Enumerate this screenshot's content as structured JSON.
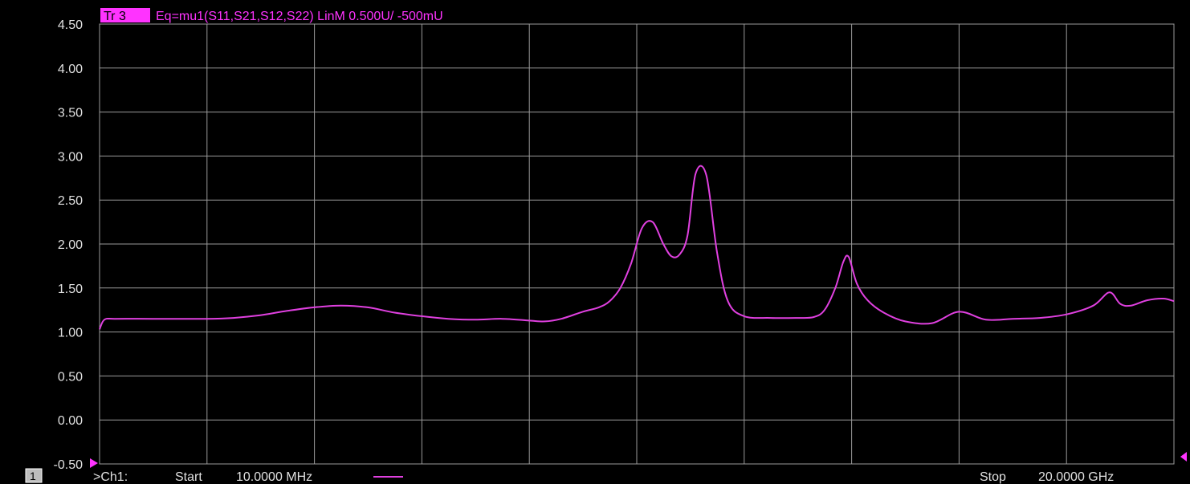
{
  "header": {
    "trace_badge": "Tr 3",
    "trace_description": "Eq=mu1(S11,S21,S12,S22) LinM 0.500U/  -500mU"
  },
  "footer": {
    "channel_number": "1",
    "channel_label": ">Ch1:",
    "start_label": "Start",
    "start_value": "10.0000 MHz",
    "stop_label": "Stop",
    "stop_value": "20.0000 GHz"
  },
  "colors": {
    "background": "#000000",
    "grid": "#9a9a9a",
    "trace": "#e040e0",
    "badge_bg": "#ff33ff",
    "text": "#e0e0e0"
  },
  "chart_data": {
    "type": "line",
    "x_unit": "GHz",
    "xlim": [
      0.01,
      20.0
    ],
    "ylim": [
      -0.5,
      4.5
    ],
    "y_ticks": [
      "4.50",
      "4.00",
      "3.50",
      "3.00",
      "2.50",
      "2.00",
      "1.50",
      "1.00",
      "0.50",
      "0.00",
      "-0.50"
    ],
    "grid": true,
    "series": [
      {
        "x": [
          0.01,
          0.1,
          0.3,
          1.0,
          2.0,
          2.5,
          3.0,
          3.5,
          4.0,
          4.5,
          5.0,
          5.5,
          6.0,
          6.5,
          7.0,
          7.5,
          8.0,
          8.3,
          8.6,
          9.0,
          9.3,
          9.5,
          9.7,
          9.9,
          10.1,
          10.3,
          10.5,
          10.65,
          10.8,
          10.95,
          11.1,
          11.3,
          11.5,
          11.7,
          12.0,
          12.5,
          13.0,
          13.3,
          13.5,
          13.7,
          13.85,
          13.95,
          14.1,
          14.3,
          14.6,
          15.0,
          15.5,
          16.0,
          16.5,
          17.0,
          17.5,
          18.0,
          18.5,
          18.8,
          19.0,
          19.2,
          19.5,
          19.8,
          20.0
        ],
        "y": [
          1.03,
          1.14,
          1.15,
          1.15,
          1.15,
          1.16,
          1.19,
          1.24,
          1.28,
          1.3,
          1.28,
          1.22,
          1.18,
          1.15,
          1.14,
          1.15,
          1.13,
          1.12,
          1.15,
          1.23,
          1.28,
          1.35,
          1.5,
          1.78,
          2.18,
          2.25,
          2.0,
          1.86,
          1.88,
          2.1,
          2.8,
          2.78,
          1.9,
          1.35,
          1.18,
          1.16,
          1.16,
          1.17,
          1.25,
          1.5,
          1.8,
          1.85,
          1.55,
          1.36,
          1.22,
          1.12,
          1.1,
          1.23,
          1.14,
          1.15,
          1.16,
          1.2,
          1.3,
          1.45,
          1.32,
          1.3,
          1.36,
          1.38,
          1.35
        ]
      }
    ]
  }
}
